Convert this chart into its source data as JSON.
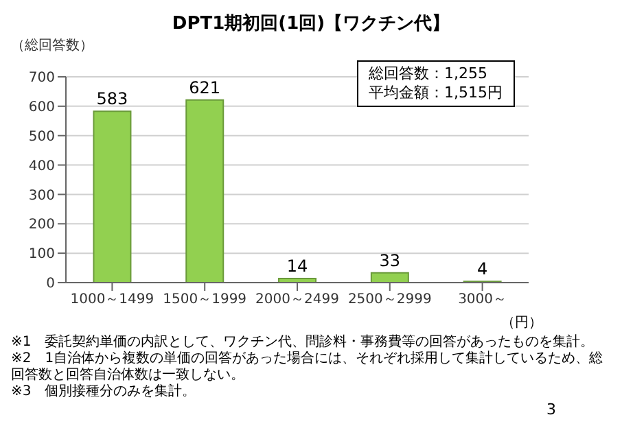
{
  "chart_data": {
    "type": "bar",
    "title": "DPT1期初回(1回)【ワクチン代】",
    "ylabel": "（総回答数）",
    "xlabel": "（円）",
    "categories": [
      "1000～1499",
      "1500～1999",
      "2000～2499",
      "2500～2999",
      "3000～"
    ],
    "values": [
      583,
      621,
      14,
      33,
      4
    ],
    "color": "#92d050",
    "ylim": [
      0,
      700
    ],
    "yticks": [
      0,
      100,
      200,
      300,
      400,
      500,
      600,
      700
    ],
    "grid": "y",
    "data_labels": true,
    "annotations": [
      "総回答数：1,255",
      "平均金額：1,515円",
      "※1　委託契約単価の内訳として、ワクチン代、問診料・事務費等の回答があったものを集計。",
      "※2　1自治体から複数の単価の回答があった場合には、それぞれ採用して集計しているため、総回答数と回答自治体数は一致しない。",
      "※3　個別接種分のみを集計。",
      "3"
    ]
  }
}
